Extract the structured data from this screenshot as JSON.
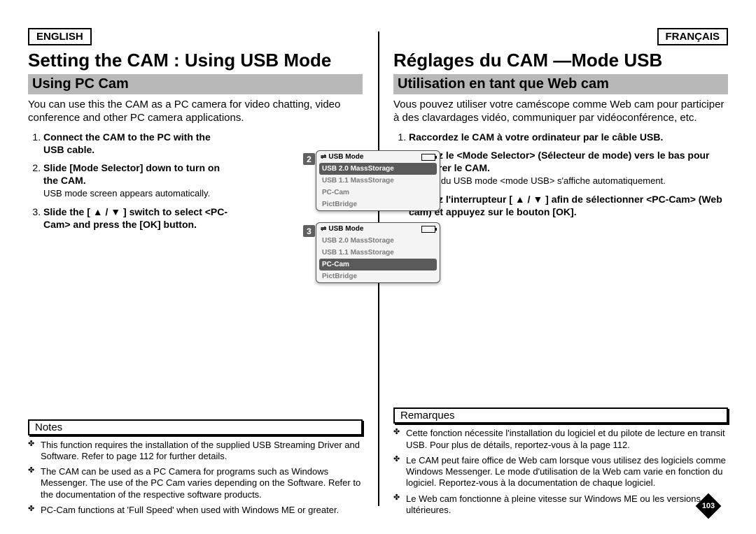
{
  "left": {
    "lang_label": "ENGLISH",
    "title": "Setting the CAM : Using USB Mode",
    "section": "Using PC Cam",
    "intro": "You can use this the CAM as a PC camera for video chatting, video conference and other PC camera applications.",
    "steps": [
      {
        "bold": "Connect the CAM to the PC with the USB cable.",
        "sub": ""
      },
      {
        "bold": "Slide [Mode Selector] down to turn on the CAM.",
        "sub": "USB mode screen appears automatically."
      },
      {
        "bold": "Slide the [ ▲ / ▼ ] switch to select <PC-Cam> and press the [OK] button.",
        "sub": ""
      }
    ],
    "notes_label": "Notes",
    "notes": [
      "This function requires the installation of the supplied USB Streaming Driver and Software. Refer to page 112 for further details.",
      "The CAM can be used as a PC Camera for programs such as Windows Messenger. The use of the PC Cam varies depending on the Software. Refer to the documentation of the respective software products.",
      "PC-Cam functions at 'Full Speed' when used with Windows ME or greater."
    ]
  },
  "right": {
    "lang_label": "FRANÇAIS",
    "title": "Réglages du CAM —Mode USB",
    "section": "Utilisation en tant que Web cam",
    "intro": "Vous pouvez utiliser votre caméscope comme Web cam pour participer à des clavardages vidéo, communiquer par vidéoconférence, etc.",
    "steps": [
      {
        "bold": "Raccordez le CAM à votre ordinateur par le câble USB.",
        "sub": ""
      },
      {
        "bold": "Glissez le <Mode Selector> (Sélecteur de mode) vers le bas pour démarrer le CAM.",
        "sub": "L'écran du USB mode <mode USB> s'affiche automatiquement."
      },
      {
        "bold": "Glissez l'interrupteur [ ▲ / ▼ ] afin de sélectionner <PC-Cam> (Web cam) et appuyez sur le bouton [OK].",
        "sub": ""
      }
    ],
    "notes_label": "Remarques",
    "notes": [
      "Cette fonction nécessite l'installation du logiciel et du pilote de lecture en transit USB. Pour plus de détails, reportez-vous à la page 112.",
      "Le CAM peut faire office de Web cam lorsque vous utilisez des logiciels comme Windows Messenger. Le mode d'utilisation de la Web cam varie en fonction du logiciel. Reportez-vous à la documentation de chaque logiciel.",
      "Le Web cam fonctionne à pleine vitesse sur Windows ME ou les versions ultérieures."
    ]
  },
  "screens": {
    "header": "USB Mode",
    "items": [
      "USB 2.0 MassStorage",
      "USB 1.1 MassStorage",
      "PC-Cam",
      "PictBridge"
    ],
    "screen2": {
      "badge": "2",
      "selected_index": 0
    },
    "screen3": {
      "badge": "3",
      "selected_index": 2
    }
  },
  "page_number": "103",
  "colors": {
    "section_bar_bg": "#b8b8b8",
    "screen_sel_bg": "#5a5a5a",
    "text": "#000000",
    "muted": "#7a7a7a"
  }
}
